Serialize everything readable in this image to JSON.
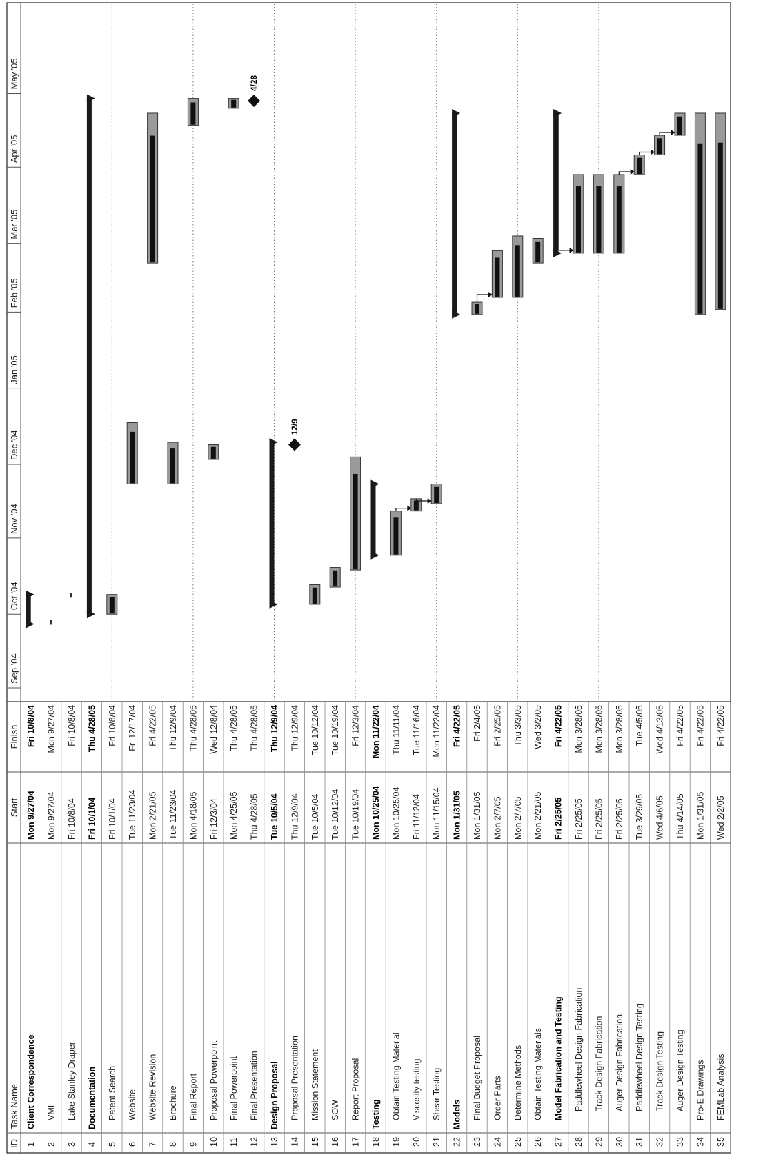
{
  "columns": {
    "id": "ID",
    "name": "Task Name",
    "start": "Start",
    "finish": "Finish"
  },
  "months": [
    "Sep '04",
    "Oct '04",
    "Nov '04",
    "Dec '04",
    "Jan '05",
    "Feb '05",
    "Mar '05",
    "Apr '05",
    "May '05"
  ],
  "tasks": [
    {
      "id": "1",
      "name": "Client Correspondence",
      "start": "Mon 9/27/04",
      "finish": "Fri 10/8/04",
      "bold": true,
      "summary": true,
      "indent": 0
    },
    {
      "id": "2",
      "name": "VMI",
      "start": "Mon 9/27/04",
      "finish": "Mon 9/27/04",
      "indent": 1
    },
    {
      "id": "3",
      "name": "Lake Stanley Draper",
      "start": "Fri 10/8/04",
      "finish": "Fri 10/8/04",
      "indent": 1
    },
    {
      "id": "4",
      "name": "Documentation",
      "start": "Fri 10/1/04",
      "finish": "Thu 4/28/05",
      "bold": true,
      "summary": true,
      "indent": 0
    },
    {
      "id": "5",
      "name": "Patent Search",
      "start": "Fri 10/1/04",
      "finish": "Fri 10/8/04",
      "indent": 1
    },
    {
      "id": "6",
      "name": "Website",
      "start": "Tue 11/23/04",
      "finish": "Fri 12/17/04",
      "indent": 1
    },
    {
      "id": "7",
      "name": "Website Revision",
      "start": "Mon 2/21/05",
      "finish": "Fri 4/22/05",
      "indent": 1
    },
    {
      "id": "8",
      "name": "Brochure",
      "start": "Tue 11/23/04",
      "finish": "Thu 12/9/04",
      "indent": 1
    },
    {
      "id": "9",
      "name": "Final Report",
      "start": "Mon 4/18/05",
      "finish": "Thu 4/28/05",
      "indent": 1
    },
    {
      "id": "10",
      "name": "Proposal Powerpoint",
      "start": "Fri 12/3/04",
      "finish": "Wed 12/8/04",
      "indent": 1
    },
    {
      "id": "11",
      "name": "Final Powerpoint",
      "start": "Mon 4/25/05",
      "finish": "Thu 4/28/05",
      "indent": 1
    },
    {
      "id": "12",
      "name": "Final Presentation",
      "start": "Thu 4/28/05",
      "finish": "Thu 4/28/05",
      "indent": 1,
      "milestone": "4/28"
    },
    {
      "id": "13",
      "name": "Design Proposal",
      "start": "Tue 10/5/04",
      "finish": "Thu 12/9/04",
      "bold": true,
      "summary": true,
      "indent": 0
    },
    {
      "id": "14",
      "name": "Proposal Presentation",
      "start": "Thu 12/9/04",
      "finish": "Thu 12/9/04",
      "indent": 1,
      "milestone": "12/9"
    },
    {
      "id": "15",
      "name": "Mission Statement",
      "start": "Tue 10/5/04",
      "finish": "Tue 10/12/04",
      "indent": 1
    },
    {
      "id": "16",
      "name": "SOW",
      "start": "Tue 10/12/04",
      "finish": "Tue 10/19/04",
      "indent": 1
    },
    {
      "id": "17",
      "name": "Report Proposal",
      "start": "Tue 10/19/04",
      "finish": "Fri 12/3/04",
      "indent": 1
    },
    {
      "id": "18",
      "name": "Testing",
      "start": "Mon 10/25/04",
      "finish": "Mon 11/22/04",
      "bold": true,
      "summary": true,
      "indent": 0
    },
    {
      "id": "19",
      "name": "Obtain Testing Material",
      "start": "Mon 10/25/04",
      "finish": "Thu 11/11/04",
      "indent": 1
    },
    {
      "id": "20",
      "name": "Viscosity testing",
      "start": "Fri 11/12/04",
      "finish": "Tue 11/16/04",
      "indent": 1
    },
    {
      "id": "21",
      "name": "Shear Testing",
      "start": "Mon 11/15/04",
      "finish": "Mon 11/22/04",
      "indent": 1
    },
    {
      "id": "22",
      "name": "Models",
      "start": "Mon 1/31/05",
      "finish": "Fri 4/22/05",
      "bold": true,
      "summary": true,
      "indent": 0
    },
    {
      "id": "23",
      "name": "Final Budget Proposal",
      "start": "Mon 1/31/05",
      "finish": "Fri 2/4/05",
      "indent": 1
    },
    {
      "id": "24",
      "name": "Order Parts",
      "start": "Mon 2/7/05",
      "finish": "Fri 2/25/05",
      "indent": 1
    },
    {
      "id": "25",
      "name": "Determine Methods",
      "start": "Mon 2/7/05",
      "finish": "Thu 3/3/05",
      "indent": 1
    },
    {
      "id": "26",
      "name": "Obtain Testing Materials",
      "start": "Mon 2/21/05",
      "finish": "Wed 3/2/05",
      "indent": 1
    },
    {
      "id": "27",
      "name": "Model Fabrication and Testing",
      "start": "Fri 2/25/05",
      "finish": "Fri 4/22/05",
      "bold": true,
      "summary": true,
      "indent": 1
    },
    {
      "id": "28",
      "name": "Paddlewheel Design Fabrication",
      "start": "Fri 2/25/05",
      "finish": "Mon 3/28/05",
      "indent": 2
    },
    {
      "id": "29",
      "name": "Track Design Fabrication",
      "start": "Fri 2/25/05",
      "finish": "Mon 3/28/05",
      "indent": 2
    },
    {
      "id": "30",
      "name": "Auger Design Fabrication",
      "start": "Fri 2/25/05",
      "finish": "Mon 3/28/05",
      "indent": 2
    },
    {
      "id": "31",
      "name": "Paddlewheel Design Testing",
      "start": "Tue 3/29/05",
      "finish": "Tue 4/5/05",
      "indent": 2
    },
    {
      "id": "32",
      "name": "Track Design Testing",
      "start": "Wed 4/6/05",
      "finish": "Wed 4/13/05",
      "indent": 2
    },
    {
      "id": "33",
      "name": "Auger Design Testing",
      "start": "Thu 4/14/05",
      "finish": "Fri 4/22/05",
      "indent": 2
    },
    {
      "id": "34",
      "name": "Pro-E Drawings",
      "start": "Mon 1/31/05",
      "finish": "Fri 4/22/05",
      "indent": 1
    },
    {
      "id": "35",
      "name": "FEMLab Analysis",
      "start": "Wed 2/2/05",
      "finish": "Fri 4/22/05",
      "indent": 1
    }
  ]
}
